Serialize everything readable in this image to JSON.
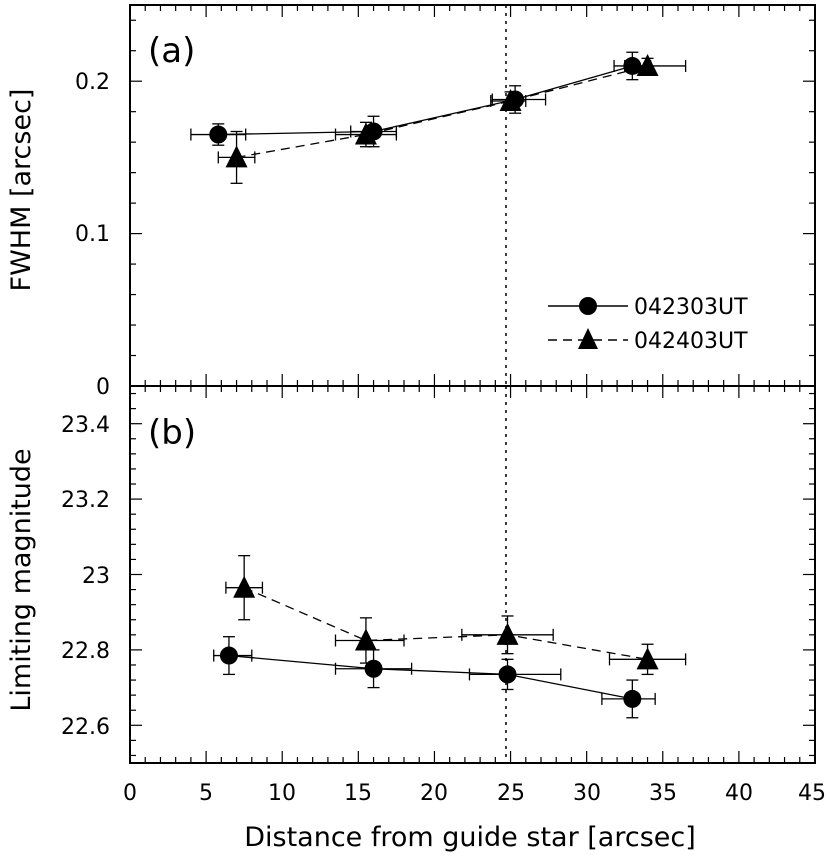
{
  "chart_data": [
    {
      "type": "scatter",
      "panel_label": "(a)",
      "ylabel": "FWHM [arcsec]",
      "xlim": [
        0,
        45
      ],
      "ylim": [
        0,
        0.25
      ],
      "yticks": [
        0,
        0.1,
        0.2
      ],
      "ytick_labels": [
        "0",
        "0.1",
        "0.2"
      ],
      "vline_x": 24.7,
      "series": [
        {
          "name": "042303UT",
          "marker": "circle",
          "line": "solid",
          "points": [
            {
              "x": 5.8,
              "y": 0.165,
              "xerr_lo": 1.8,
              "xerr_hi": 1.8,
              "yerr": 0.007
            },
            {
              "x": 16.0,
              "y": 0.167,
              "xerr_lo": 1.5,
              "xerr_hi": 1.5,
              "yerr": 0.01
            },
            {
              "x": 25.3,
              "y": 0.188,
              "xerr_lo": 1.5,
              "xerr_hi": 2.0,
              "yerr": 0.009
            },
            {
              "x": 33.0,
              "y": 0.21,
              "xerr_lo": 1.2,
              "xerr_hi": 1.2,
              "yerr": 0.009
            }
          ]
        },
        {
          "name": "042403UT",
          "marker": "triangle",
          "line": "dashed",
          "points": [
            {
              "x": 7.0,
              "y": 0.15,
              "xerr_lo": 1.2,
              "xerr_hi": 1.2,
              "yerr": 0.017
            },
            {
              "x": 15.5,
              "y": 0.165,
              "xerr_lo": 2.0,
              "xerr_hi": 2.0,
              "yerr": 0.008
            },
            {
              "x": 25.0,
              "y": 0.187,
              "xerr_lo": 1.3,
              "xerr_hi": 1.0,
              "yerr": 0.006
            },
            {
              "x": 34.0,
              "y": 0.21,
              "xerr_lo": 1.5,
              "xerr_hi": 2.5,
              "yerr": 0.005
            }
          ]
        }
      ],
      "legend": [
        {
          "label": "042303UT",
          "marker": "circle",
          "line": "solid"
        },
        {
          "label": "042403UT",
          "marker": "triangle",
          "line": "dashed"
        }
      ],
      "legend_position": "center-right"
    },
    {
      "type": "scatter",
      "panel_label": "(b)",
      "ylabel": "Limiting magnitude",
      "xlabel": "Distance from guide star [arcsec]",
      "xlim": [
        0,
        45
      ],
      "ylim": [
        22.5,
        23.5
      ],
      "xticks": [
        0,
        5,
        10,
        15,
        20,
        25,
        30,
        35,
        40,
        45
      ],
      "xtick_labels": [
        "0",
        "5",
        "10",
        "15",
        "20",
        "25",
        "30",
        "35",
        "40",
        "45"
      ],
      "yticks": [
        22.6,
        22.8,
        23.0,
        23.2,
        23.4
      ],
      "ytick_labels": [
        "22.6",
        "22.8",
        "23",
        "23.2",
        "23.4"
      ],
      "vline_x": 24.7,
      "series": [
        {
          "name": "042303UT",
          "marker": "circle",
          "line": "solid",
          "points": [
            {
              "x": 6.5,
              "y": 22.785,
              "xerr_lo": 1.0,
              "xerr_hi": 1.5,
              "yerr": 0.05
            },
            {
              "x": 16.0,
              "y": 22.75,
              "xerr_lo": 2.5,
              "xerr_hi": 2.5,
              "yerr": 0.05
            },
            {
              "x": 24.8,
              "y": 22.735,
              "xerr_lo": 2.5,
              "xerr_hi": 3.5,
              "yerr": 0.04
            },
            {
              "x": 33.0,
              "y": 22.67,
              "xerr_lo": 2.0,
              "xerr_hi": 1.5,
              "yerr": 0.05
            }
          ]
        },
        {
          "name": "042403UT",
          "marker": "triangle",
          "line": "dashed",
          "points": [
            {
              "x": 7.5,
              "y": 22.965,
              "xerr_lo": 1.2,
              "xerr_hi": 1.2,
              "yerr": 0.085
            },
            {
              "x": 15.5,
              "y": 22.825,
              "xerr_lo": 2.0,
              "xerr_hi": 2.5,
              "yerr": 0.06
            },
            {
              "x": 24.8,
              "y": 22.84,
              "xerr_lo": 3.0,
              "xerr_hi": 3.0,
              "yerr": 0.05
            },
            {
              "x": 34.0,
              "y": 22.775,
              "xerr_lo": 2.5,
              "xerr_hi": 2.5,
              "yerr": 0.04
            }
          ]
        }
      ]
    }
  ]
}
